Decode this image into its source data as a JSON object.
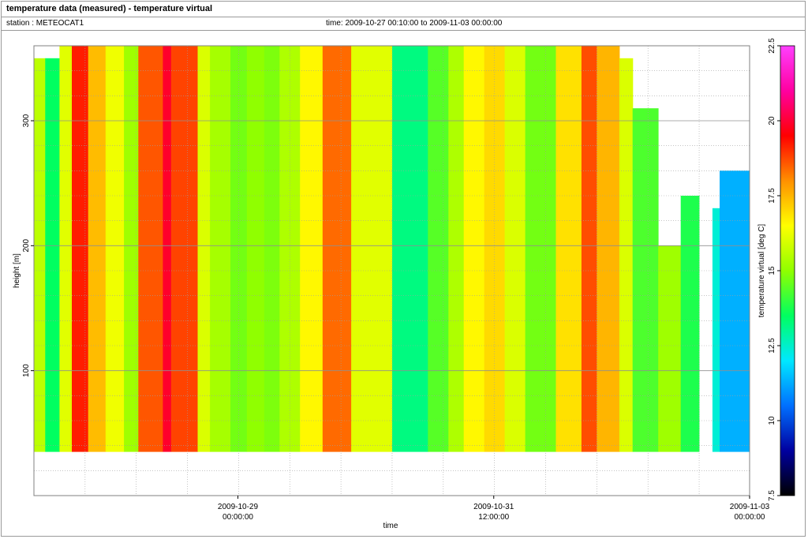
{
  "header": {
    "title": "temperature data (measured) - temperature virtual",
    "station": "station : METEOCAT1",
    "time_range": "time: 2009-10-27 00:10:00 to 2009-11-03 00:00:00"
  },
  "chart_data": {
    "type": "heatmap",
    "xlabel": "time",
    "ylabel": "height [m]",
    "colorbar_label": "temperature virtual [deg C]",
    "xlim": [
      "2009-10-27 00:10:00",
      "2009-11-03 00:00:00"
    ],
    "ylim": [
      0,
      360
    ],
    "data_height_range": [
      35,
      360
    ],
    "x_ticks": [
      {
        "date": "2009-10-29",
        "time": "00:00:00"
      },
      {
        "date": "2009-10-31",
        "time": "12:00:00"
      },
      {
        "date": "2009-11-03",
        "time": "00:00:00"
      }
    ],
    "y_ticks": [
      100,
      200,
      300
    ],
    "colorbar_range": [
      7.5,
      22.5
    ],
    "colorbar_ticks": [
      "7.5",
      "10",
      "12.5",
      "15",
      "17.5",
      "20",
      "22.5"
    ],
    "grid": true,
    "colormap": [
      "#000000",
      "#0000a0",
      "#0070ff",
      "#00e8ff",
      "#00ff60",
      "#90ff00",
      "#ffff00",
      "#ff9000",
      "#ff0000",
      "#ff00a0",
      "#ff40ff"
    ],
    "columns_x_start": [
      0,
      0.11,
      0.25,
      0.37,
      0.53,
      0.7,
      0.88,
      1.02,
      1.26,
      1.34,
      1.6,
      1.72,
      1.92,
      2.08,
      2.25,
      2.4,
      2.6,
      2.82,
      3.1,
      3.5,
      3.85,
      4.05,
      4.2,
      4.4,
      4.6,
      4.8,
      5.1,
      5.35,
      5.5,
      5.72,
      5.85,
      6.1,
      6.32,
      6.5,
      6.63,
      6.7
    ],
    "columns_temp": [
      15.6,
      13.5,
      16.1,
      19.2,
      17.4,
      16.3,
      15.2,
      18.6,
      19.9,
      18.8,
      16.0,
      15.3,
      14.7,
      15.0,
      14.8,
      15.4,
      16.6,
      18.4,
      16.1,
      13.2,
      14.4,
      15.4,
      16.6,
      17.0,
      16.0,
      14.7,
      16.9,
      18.7,
      17.5,
      16.0,
      14.3,
      15.2,
      13.8,
      null,
      12.4,
      11.3
    ],
    "columns_top": [
      350,
      350,
      360,
      360,
      360,
      360,
      360,
      360,
      360,
      360,
      360,
      360,
      360,
      360,
      360,
      360,
      360,
      360,
      360,
      360,
      360,
      360,
      360,
      360,
      360,
      360,
      360,
      360,
      360,
      350,
      310,
      200,
      240,
      null,
      230,
      260
    ]
  }
}
